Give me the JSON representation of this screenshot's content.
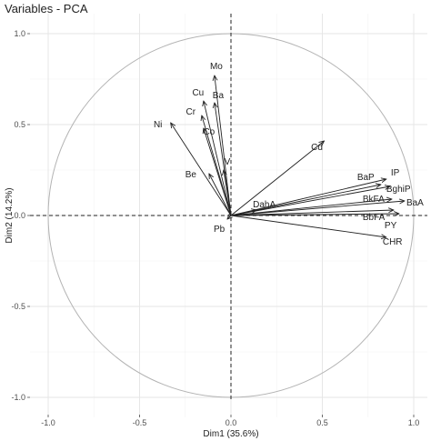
{
  "chart_data": {
    "type": "scatter",
    "title": "Variables - PCA",
    "xlabel": "Dim1 (35.6%)",
    "ylabel": "Dim2 (14.2%)",
    "xlim": [
      -1.0,
      1.0
    ],
    "ylim": [
      -1.0,
      1.0
    ],
    "xticks": [
      -1.0,
      -0.5,
      0.0,
      0.5,
      1.0
    ],
    "yticks": [
      -1.0,
      -0.5,
      0.0,
      0.5,
      1.0
    ],
    "xtick_labels": [
      "-1.0",
      "-0.5",
      "0.0",
      "0.5",
      "1.0"
    ],
    "ytick_labels": [
      "-1.0",
      "-0.5",
      "0.0",
      "0.5",
      "1.0"
    ],
    "grid": true,
    "correlation_circle": true,
    "variables": [
      {
        "name": "Mo",
        "x": -0.09,
        "y": 0.77
      },
      {
        "name": "Cu",
        "x": -0.15,
        "y": 0.63
      },
      {
        "name": "Ba",
        "x": -0.09,
        "y": 0.62
      },
      {
        "name": "Cr",
        "x": -0.16,
        "y": 0.55
      },
      {
        "name": "Co",
        "x": -0.15,
        "y": 0.48
      },
      {
        "name": "Ni",
        "x": -0.33,
        "y": 0.51
      },
      {
        "name": "V",
        "x": -0.04,
        "y": 0.25
      },
      {
        "name": "Be",
        "x": -0.12,
        "y": 0.23
      },
      {
        "name": "Cd",
        "x": 0.51,
        "y": 0.41
      },
      {
        "name": "IP",
        "x": 0.85,
        "y": 0.2
      },
      {
        "name": "BaP",
        "x": 0.82,
        "y": 0.17
      },
      {
        "name": "BghiP",
        "x": 0.87,
        "y": 0.16
      },
      {
        "name": "BkFA",
        "x": 0.88,
        "y": 0.09
      },
      {
        "name": "BaA",
        "x": 0.95,
        "y": 0.08
      },
      {
        "name": "BbFA",
        "x": 0.89,
        "y": 0.03
      },
      {
        "name": "PY",
        "x": 0.92,
        "y": 0.01
      },
      {
        "name": "CHR",
        "x": 0.85,
        "y": -0.12
      },
      {
        "name": "DahA",
        "x": 0.14,
        "y": 0.03
      },
      {
        "name": "Pb",
        "x": -0.02,
        "y": -0.02
      }
    ]
  }
}
